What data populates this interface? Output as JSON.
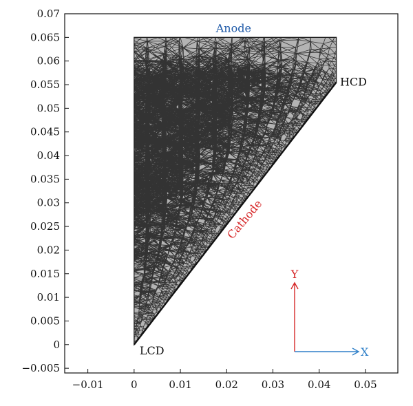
{
  "chart_data": {
    "type": "mesh",
    "xlim": [
      -0.015,
      0.057
    ],
    "ylim": [
      -0.006,
      0.07
    ],
    "x_ticks": [
      "−0.01",
      "0",
      "0.01",
      "0.02",
      "0.03",
      "0.04",
      "0.05"
    ],
    "x_tick_values": [
      -0.01,
      0,
      0.01,
      0.02,
      0.03,
      0.04,
      0.05
    ],
    "y_ticks": [
      "−0.005",
      "0",
      "0.005",
      "0.01",
      "0.015",
      "0.02",
      "0.025",
      "0.03",
      "0.035",
      "0.04",
      "0.045",
      "0.05",
      "0.055",
      "0.06",
      "0.065",
      "0.07"
    ],
    "y_tick_values": [
      -0.005,
      0,
      0.005,
      0.01,
      0.015,
      0.02,
      0.025,
      0.03,
      0.035,
      0.04,
      0.045,
      0.05,
      0.055,
      0.06,
      0.065,
      0.07
    ],
    "domain_vertices": [
      [
        0,
        0
      ],
      [
        0,
        0.065
      ],
      [
        0.0437,
        0.065
      ],
      [
        0.0437,
        0.0555
      ]
    ],
    "mesh_fill": "#b4b4b4",
    "mesh_line": "#333333",
    "annotations": {
      "anode": "Anode",
      "cathode": "Cathode",
      "hcd": "HCD",
      "lcd": "LCD",
      "axis_y": "Y",
      "axis_x": "X"
    },
    "colors": {
      "anode": "#1f5aa8",
      "cathode": "#d62728",
      "y_arrow": "#d62728",
      "x_arrow": "#2e7fc8",
      "text": "#111111"
    }
  }
}
